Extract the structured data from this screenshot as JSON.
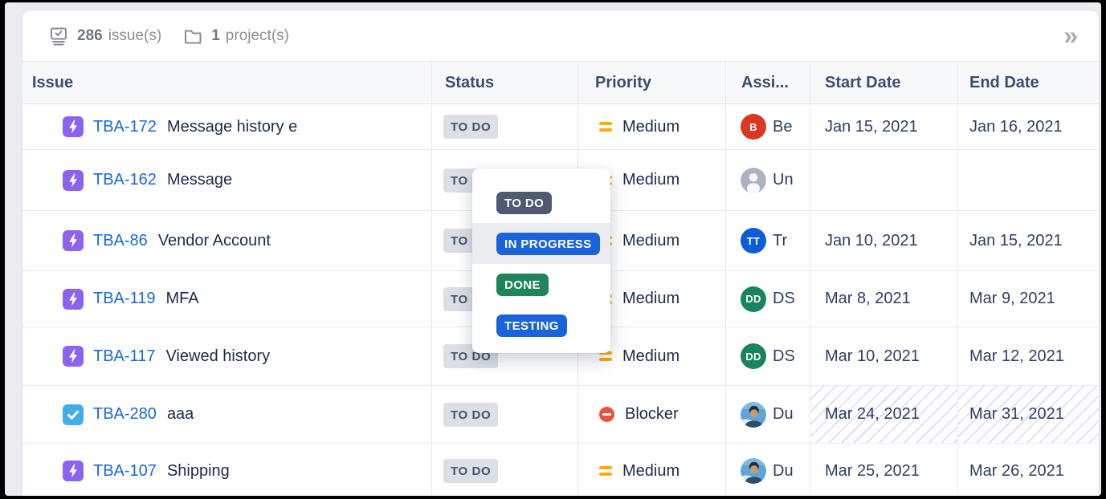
{
  "topbar": {
    "issues_count": "286",
    "issues_label": "issue(s)",
    "projects_count": "1",
    "projects_label": "project(s)",
    "icons": {
      "issues": "issue-stack-icon",
      "projects": "folder-icon",
      "expand": "double-chevron-right-icon"
    },
    "expand_glyph": "»"
  },
  "table": {
    "columns": [
      {
        "id": "issue",
        "label": "Issue"
      },
      {
        "id": "status",
        "label": "Status"
      },
      {
        "id": "priority",
        "label": "Priority"
      },
      {
        "id": "assignee",
        "label": "Assi..."
      },
      {
        "id": "start",
        "label": "Start Date"
      },
      {
        "id": "end",
        "label": "End Date"
      }
    ],
    "rows": [
      {
        "key": "TBA-172",
        "type": "story",
        "summary": "Message history e",
        "status": "TO DO",
        "priority": {
          "name": "Medium",
          "icon": "medium",
          "color": "#FFAB00"
        },
        "assignee": {
          "kind": "initials",
          "initials": "B",
          "color": "#D8391F",
          "label": "Be"
        },
        "start": "Jan 15, 2021",
        "end": "Jan 16, 2021",
        "hatched": false
      },
      {
        "key": "TBA-162",
        "type": "story",
        "summary": "Message",
        "status": "TO DO",
        "priority": {
          "name": "Medium",
          "icon": "medium",
          "color": "#FFAB00"
        },
        "assignee": {
          "kind": "unassigned",
          "label": "Un"
        },
        "start": "",
        "end": "",
        "hatched": false
      },
      {
        "key": "TBA-86",
        "type": "story",
        "summary": "Vendor Account",
        "status": "TO DO",
        "priority": {
          "name": "Medium",
          "icon": "medium",
          "color": "#FFAB00"
        },
        "assignee": {
          "kind": "initials",
          "initials": "TT",
          "color": "#0B5CD7",
          "label": "Tr"
        },
        "start": "Jan 10, 2021",
        "end": "Jan 15, 2021",
        "hatched": false
      },
      {
        "key": "TBA-119",
        "type": "story",
        "summary": "MFA",
        "status": "TO DO",
        "priority": {
          "name": "Medium",
          "icon": "medium",
          "color": "#FFAB00"
        },
        "assignee": {
          "kind": "initials",
          "initials": "DD",
          "color": "#17845C",
          "label": "DS"
        },
        "start": "Mar 8, 2021",
        "end": "Mar 9, 2021",
        "hatched": false
      },
      {
        "key": "TBA-117",
        "type": "story",
        "summary": "Viewed history",
        "status": "TO DO",
        "priority": {
          "name": "Medium",
          "icon": "medium",
          "color": "#FFAB00"
        },
        "assignee": {
          "kind": "initials",
          "initials": "DD",
          "color": "#17845C",
          "label": "DS"
        },
        "start": "Mar 10, 2021",
        "end": "Mar 12, 2021",
        "hatched": false
      },
      {
        "key": "TBA-280",
        "type": "task",
        "summary": "aaa",
        "status": "TO DO",
        "priority": {
          "name": "Blocker",
          "icon": "blocker",
          "color": "#EB5140"
        },
        "assignee": {
          "kind": "photo",
          "label": "Du"
        },
        "start": "Mar 24, 2021",
        "end": "Mar 31, 2021",
        "hatched": true
      },
      {
        "key": "TBA-107",
        "type": "story",
        "summary": "Shipping",
        "status": "TO DO",
        "priority": {
          "name": "Medium",
          "icon": "medium",
          "color": "#FFAB00"
        },
        "assignee": {
          "kind": "photo",
          "label": "Du"
        },
        "start": "Mar 25, 2021",
        "end": "Mar 26, 2021",
        "hatched": false
      }
    ]
  },
  "status_dropdown": {
    "options": [
      {
        "label": "TO DO",
        "bg": "#4E5A72",
        "hovered": false
      },
      {
        "label": "IN PROGRESS",
        "bg": "#1B63DA",
        "hovered": true
      },
      {
        "label": "DONE",
        "bg": "#1E845A",
        "hovered": false
      },
      {
        "label": "TESTING",
        "bg": "#1B63DA",
        "hovered": false
      }
    ],
    "hover_bg": "#EBECF0"
  },
  "colors": {
    "issue_key_link": "#1868DB",
    "lozenge_bg": "#DCDFE4",
    "lozenge_text": "#44546F",
    "story_icon_bg": "#8D62EE",
    "task_icon_bg": "#44ACE9",
    "header_text": "#3A4E6E"
  }
}
